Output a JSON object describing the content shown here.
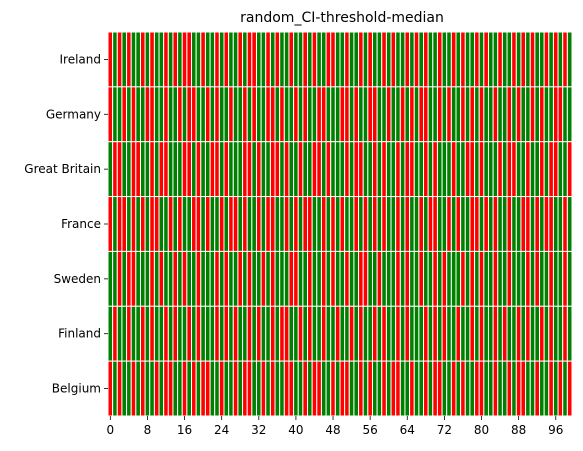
{
  "chart_data": {
    "type": "heatmap",
    "title": "random_CI-threshold-median",
    "xlabel": "",
    "ylabel": "",
    "rows": [
      "Ireland",
      "Germany",
      "Great Britain",
      "France",
      "Sweden",
      "Finland",
      "Belgium"
    ],
    "n_columns": 100,
    "x_tick_labels": [
      "0",
      "8",
      "16",
      "24",
      "32",
      "40",
      "48",
      "56",
      "64",
      "72",
      "80",
      "88",
      "96"
    ],
    "x_tick_values": [
      0,
      8,
      16,
      24,
      32,
      40,
      48,
      56,
      64,
      72,
      80,
      88,
      96
    ],
    "colors": {
      "0": "#ff0000",
      "1": "#008000"
    },
    "grid": false,
    "values": [
      [
        0,
        1,
        0,
        1,
        0,
        1,
        1,
        0,
        1,
        0,
        1,
        1,
        0,
        1,
        0,
        1,
        0,
        0,
        1,
        1,
        0,
        1,
        1,
        0,
        1,
        0,
        1,
        1,
        0,
        1,
        0,
        0,
        1,
        1,
        0,
        1,
        0,
        1,
        1,
        0,
        1,
        1,
        0,
        1,
        0,
        1,
        1,
        0,
        0,
        1,
        1,
        0,
        1,
        1,
        0,
        1,
        0,
        1,
        1,
        0,
        1,
        0,
        1,
        1,
        0,
        1,
        0,
        1,
        0,
        1,
        1,
        0,
        1,
        1,
        0,
        1,
        0,
        1,
        1,
        0,
        1,
        0,
        1,
        1,
        0,
        1,
        1,
        0,
        1,
        0,
        1,
        0,
        1,
        1,
        0,
        1,
        0,
        1,
        0,
        1
      ],
      [
        0,
        1,
        1,
        0,
        1,
        0,
        1,
        1,
        0,
        0,
        1,
        1,
        0,
        1,
        1,
        0,
        1,
        0,
        0,
        1,
        1,
        0,
        1,
        0,
        1,
        1,
        0,
        1,
        1,
        0,
        1,
        0,
        1,
        1,
        0,
        0,
        1,
        0,
        1,
        1,
        0,
        1,
        0,
        1,
        1,
        0,
        0,
        1,
        1,
        1,
        0,
        0,
        1,
        0,
        1,
        1,
        0,
        0,
        1,
        1,
        0,
        1,
        1,
        0,
        1,
        0,
        1,
        0,
        0,
        1,
        1,
        0,
        1,
        0,
        1,
        1,
        0,
        1,
        0,
        1,
        0,
        1,
        1,
        0,
        1,
        1,
        0,
        1,
        0,
        1,
        1,
        0,
        1,
        0,
        1,
        1,
        0,
        0,
        1,
        1
      ],
      [
        1,
        0,
        0,
        1,
        1,
        0,
        0,
        1,
        1,
        0,
        1,
        0,
        0,
        1,
        1,
        1,
        0,
        0,
        1,
        0,
        1,
        1,
        0,
        0,
        1,
        0,
        1,
        1,
        1,
        0,
        0,
        1,
        0,
        1,
        1,
        0,
        0,
        1,
        0,
        1,
        1,
        0,
        1,
        1,
        0,
        0,
        1,
        0,
        1,
        1,
        1,
        0,
        1,
        0,
        0,
        1,
        1,
        0,
        1,
        0,
        1,
        1,
        0,
        1,
        0,
        0,
        1,
        1,
        0,
        1,
        0,
        1,
        1,
        1,
        0,
        1,
        1,
        0,
        0,
        1,
        0,
        1,
        1,
        1,
        0,
        1,
        0,
        0,
        1,
        1,
        0,
        1,
        1,
        0,
        1,
        0,
        0,
        1,
        1,
        0
      ],
      [
        0,
        1,
        0,
        0,
        1,
        0,
        1,
        0,
        1,
        0,
        0,
        1,
        1,
        0,
        1,
        0,
        1,
        1,
        0,
        0,
        1,
        0,
        1,
        1,
        0,
        1,
        0,
        0,
        1,
        0,
        1,
        1,
        0,
        1,
        0,
        0,
        1,
        1,
        0,
        1,
        0,
        1,
        0,
        0,
        1,
        1,
        0,
        1,
        0,
        1,
        0,
        1,
        1,
        0,
        1,
        0,
        1,
        0,
        1,
        0,
        1,
        1,
        0,
        1,
        0,
        1,
        1,
        0,
        1,
        0,
        0,
        1,
        1,
        0,
        1,
        0,
        1,
        1,
        0,
        0,
        1,
        0,
        1,
        0,
        1,
        1,
        0,
        1,
        1,
        0,
        0,
        1,
        0,
        1,
        0,
        0,
        1,
        1,
        0,
        1
      ],
      [
        1,
        1,
        0,
        1,
        0,
        0,
        1,
        1,
        1,
        0,
        1,
        0,
        1,
        1,
        0,
        1,
        0,
        1,
        1,
        0,
        1,
        1,
        1,
        0,
        1,
        0,
        1,
        1,
        0,
        1,
        0,
        1,
        1,
        0,
        1,
        0,
        1,
        1,
        1,
        0,
        0,
        1,
        1,
        0,
        1,
        1,
        0,
        1,
        0,
        1,
        1,
        0,
        1,
        1,
        0,
        0,
        1,
        1,
        0,
        1,
        1,
        1,
        0,
        1,
        0,
        1,
        1,
        0,
        1,
        1,
        0,
        1,
        0,
        1,
        1,
        1,
        0,
        1,
        0,
        1,
        0,
        1,
        1,
        0,
        1,
        1,
        0,
        1,
        1,
        1,
        0,
        1,
        0,
        1,
        1,
        0,
        1,
        1,
        0,
        1
      ],
      [
        1,
        0,
        1,
        1,
        0,
        1,
        1,
        0,
        1,
        0,
        1,
        1,
        0,
        1,
        0,
        1,
        1,
        0,
        1,
        0,
        1,
        1,
        1,
        0,
        1,
        0,
        1,
        0,
        1,
        1,
        0,
        1,
        0,
        1,
        1,
        0,
        1,
        0,
        0,
        1,
        1,
        0,
        1,
        0,
        1,
        1,
        0,
        1,
        1,
        0,
        1,
        1,
        0,
        1,
        0,
        1,
        1,
        0,
        1,
        0,
        1,
        1,
        0,
        1,
        0,
        1,
        1,
        1,
        0,
        1,
        0,
        1,
        0,
        1,
        1,
        0,
        1,
        1,
        0,
        1,
        0,
        1,
        1,
        0,
        1,
        0,
        1,
        1,
        0,
        1,
        0,
        1,
        1,
        0,
        1,
        0,
        1,
        1,
        0,
        1
      ],
      [
        0,
        1,
        0,
        1,
        1,
        0,
        1,
        0,
        1,
        1,
        0,
        1,
        0,
        0,
        1,
        1,
        0,
        1,
        0,
        1,
        0,
        0,
        1,
        1,
        0,
        1,
        1,
        0,
        1,
        0,
        0,
        1,
        1,
        0,
        1,
        0,
        1,
        1,
        0,
        0,
        1,
        1,
        0,
        1,
        0,
        0,
        1,
        1,
        0,
        1,
        0,
        0,
        1,
        1,
        0,
        1,
        0,
        1,
        1,
        0,
        1,
        0,
        0,
        1,
        1,
        0,
        1,
        1,
        0,
        1,
        0,
        0,
        1,
        1,
        0,
        1,
        0,
        1,
        1,
        0,
        0,
        1,
        1,
        0,
        1,
        1,
        0,
        1,
        0,
        0,
        1,
        1,
        0,
        1,
        1,
        0,
        1,
        0,
        1,
        0
      ]
    ]
  }
}
